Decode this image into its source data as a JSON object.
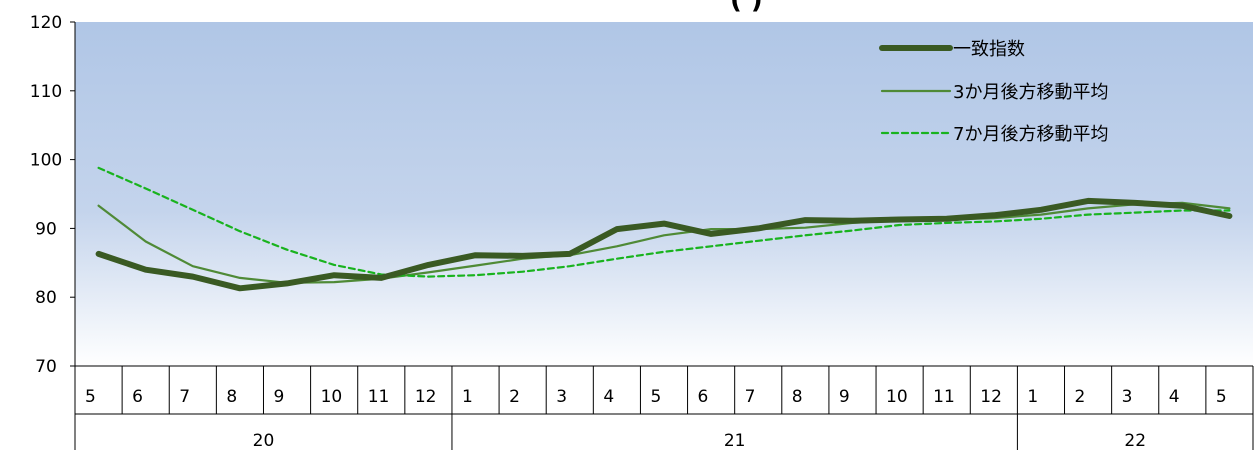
{
  "chart_data": {
    "type": "line",
    "title": "",
    "title_fragment": "(           )",
    "ylim": [
      70,
      120
    ],
    "yticks": [
      70,
      80,
      90,
      100,
      110,
      120
    ],
    "categories": [
      "5",
      "6",
      "7",
      "8",
      "9",
      "10",
      "11",
      "12",
      "1",
      "2",
      "3",
      "4",
      "5",
      "6",
      "7",
      "8",
      "9",
      "10",
      "11",
      "12",
      "1",
      "2",
      "3",
      "4",
      "5"
    ],
    "year_groups": [
      {
        "label": "20",
        "count": 8
      },
      {
        "label": "21",
        "count": 12
      },
      {
        "label": "22",
        "count": 5
      }
    ],
    "grid": false,
    "legend_position": "top-right",
    "series": [
      {
        "name": "一致指数",
        "color": "#3a5a23",
        "style": "thick",
        "values": [
          86.3,
          84.0,
          83.0,
          81.3,
          82.0,
          83.2,
          82.8,
          84.7,
          86.1,
          86.0,
          86.3,
          89.9,
          90.7,
          89.2,
          90.0,
          91.2,
          91.1,
          91.3,
          91.4,
          91.9,
          92.7,
          94.0,
          93.7,
          93.3,
          91.8
        ]
      },
      {
        "name": "3か月後方移動平均",
        "color": "#4f8a36",
        "style": "thin",
        "values": [
          93.3,
          88.1,
          84.5,
          82.8,
          82.1,
          82.2,
          82.7,
          83.6,
          84.6,
          85.6,
          86.1,
          87.4,
          89.0,
          89.9,
          89.9,
          90.1,
          90.8,
          91.2,
          91.3,
          91.5,
          92.0,
          92.9,
          93.5,
          93.7,
          92.9
        ]
      },
      {
        "name": "7か月後方移動平均",
        "color": "#19b31e",
        "style": "dashed",
        "values": [
          98.8,
          95.8,
          92.7,
          89.6,
          86.9,
          84.7,
          83.3,
          83.0,
          83.2,
          83.7,
          84.5,
          85.6,
          86.6,
          87.4,
          88.2,
          89.0,
          89.7,
          90.5,
          90.8,
          91.0,
          91.4,
          92.0,
          92.3,
          92.6,
          92.6
        ]
      }
    ]
  }
}
